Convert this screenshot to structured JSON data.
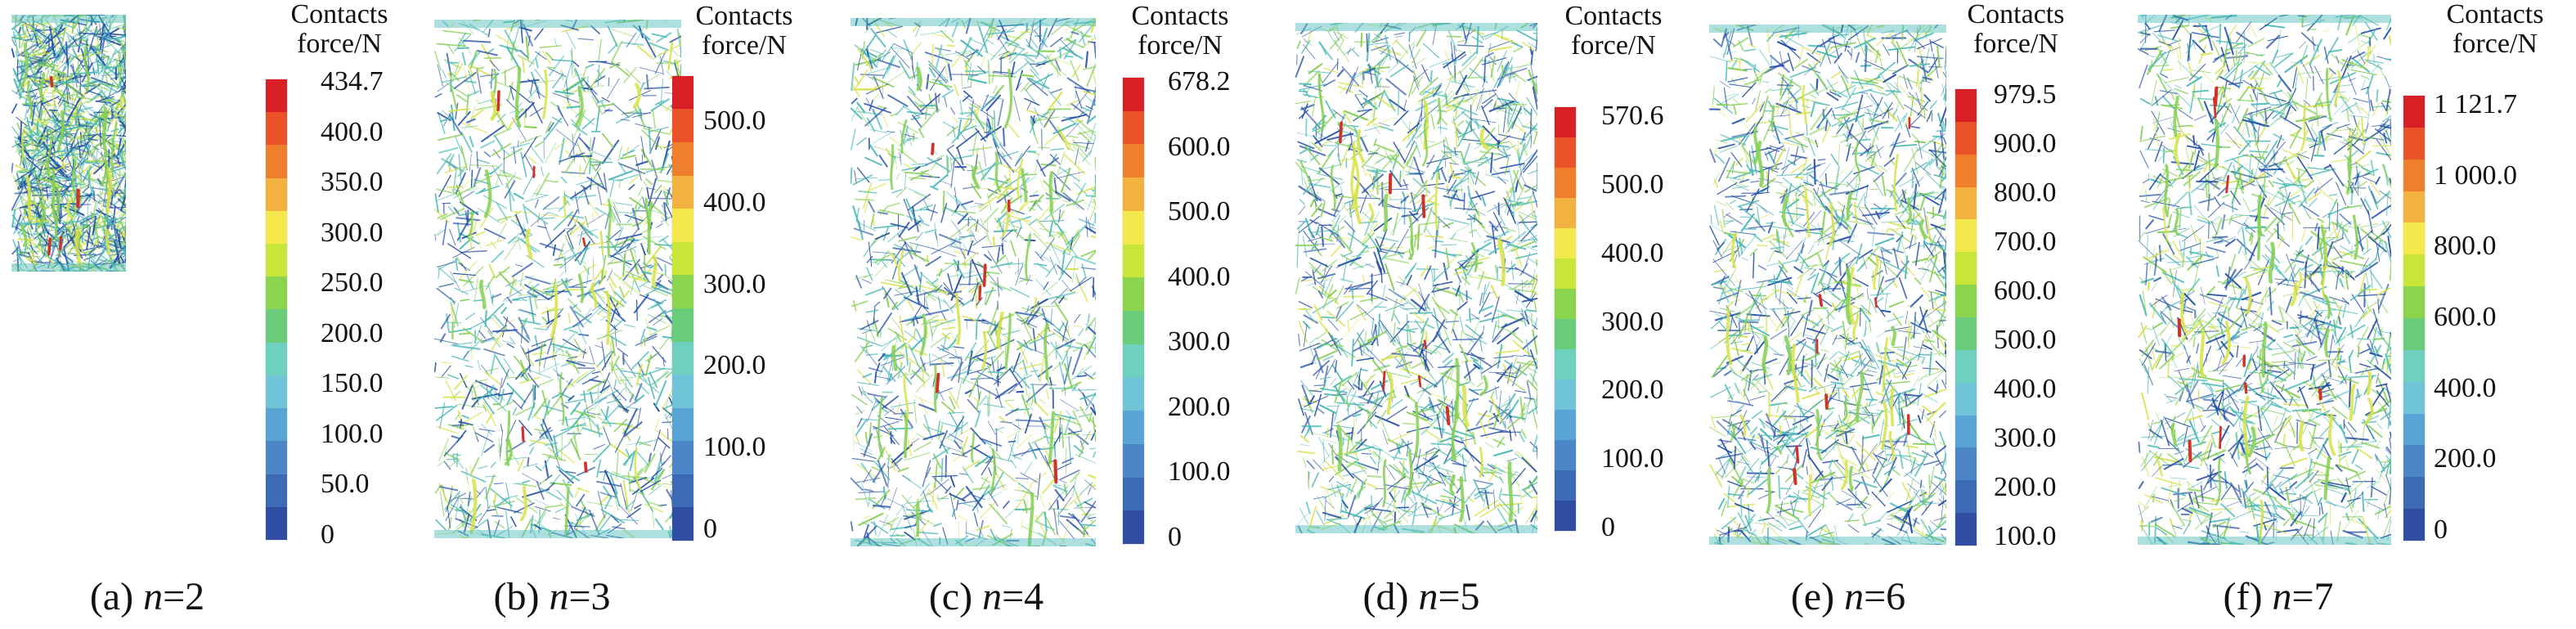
{
  "figure": {
    "panels": [
      {
        "label_prefix": "(a)",
        "n_symbol": "n",
        "n_value": "=2",
        "legend_title_line1": "Contacts",
        "legend_title_line2": "force/N",
        "ticks": [
          "434.7",
          "400.0",
          "350.0",
          "300.0",
          "250.0",
          "200.0",
          "150.0",
          "100.0",
          "50.0",
          "0"
        ],
        "stop_count": 14
      },
      {
        "label_prefix": "(b)",
        "n_symbol": "n",
        "n_value": "=3",
        "legend_title_line1": "Contacts",
        "legend_title_line2": "force/N",
        "ticks": [
          "500.0",
          "400.0",
          "300.0",
          "200.0",
          "100.0",
          "0"
        ],
        "stop_count": 14
      },
      {
        "label_prefix": "(c)",
        "n_symbol": "n",
        "n_value": "=4",
        "legend_title_line1": "Contacts",
        "legend_title_line2": "force/N",
        "ticks": [
          "678.2",
          "600.0",
          "500.0",
          "400.0",
          "300.0",
          "200.0",
          "100.0",
          "0"
        ],
        "stop_count": 14
      },
      {
        "label_prefix": "(d)",
        "n_symbol": "n",
        "n_value": "=5",
        "legend_title_line1": "Contacts",
        "legend_title_line2": "force/N",
        "ticks": [
          "570.6",
          "500.0",
          "400.0",
          "300.0",
          "200.0",
          "100.0",
          "0"
        ],
        "stop_count": 14
      },
      {
        "label_prefix": "(e)",
        "n_symbol": "n",
        "n_value": "=6",
        "legend_title_line1": "Contacts",
        "legend_title_line2": "force/N",
        "ticks": [
          "979.5",
          "900.0",
          "800.0",
          "700.0",
          "600.0",
          "500.0",
          "400.0",
          "300.0",
          "200.0",
          "100.0"
        ],
        "stop_count": 14
      },
      {
        "label_prefix": "(f)",
        "n_symbol": "n",
        "n_value": "=7",
        "legend_title_line1": "Contacts",
        "legend_title_line2": "force/N",
        "ticks": [
          "1 121.7",
          "1 000.0",
          "800.0",
          "600.0",
          "400.0",
          "200.0",
          "0"
        ],
        "stop_count": 14
      }
    ],
    "colors": {
      "background": "#ffffff",
      "scale": [
        "#2f4da3",
        "#3d6ab5",
        "#4c86c7",
        "#5aa3d5",
        "#6fc4d8",
        "#6ed1bf",
        "#68cc7a",
        "#8bd44d",
        "#c8e638",
        "#f4e84c",
        "#f2b240",
        "#ef7f2d",
        "#ea5228",
        "#d81f26"
      ],
      "mesh_blue": "#234ea6",
      "mesh_teal": "#48b8b5",
      "mesh_green": "#84cf52",
      "mesh_yellow": "#d8e24a",
      "mesh_red": "#cf3229"
    }
  }
}
